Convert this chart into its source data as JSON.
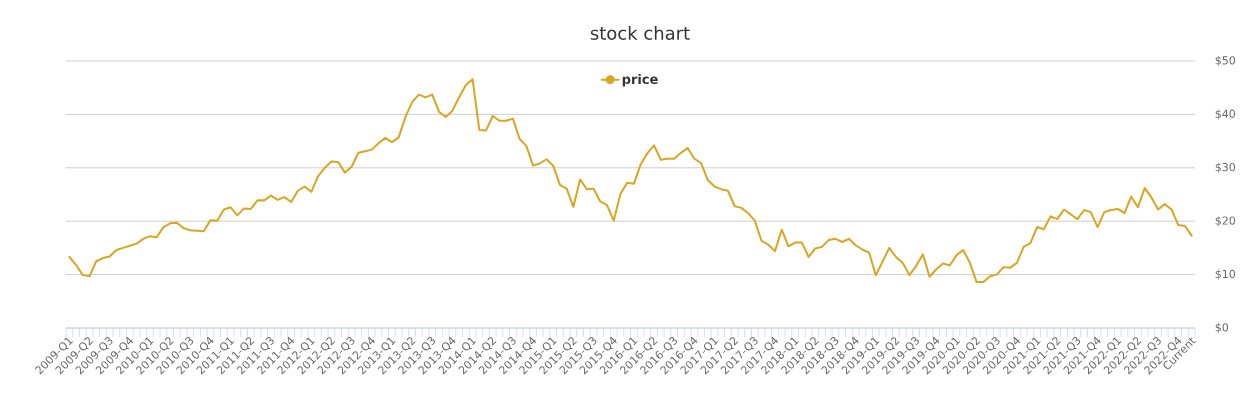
{
  "chart_data": {
    "type": "line",
    "title": "stock chart",
    "categories": [
      "2009-Q1",
      null,
      null,
      "2009-Q2",
      null,
      null,
      "2009-Q3",
      null,
      null,
      "2009-Q4",
      null,
      null,
      "2010-Q1",
      null,
      null,
      "2010-Q2",
      null,
      null,
      "2010-Q3",
      null,
      null,
      "2010-Q4",
      null,
      null,
      "2011-Q1",
      null,
      null,
      "2011-Q2",
      null,
      null,
      "2011-Q3",
      null,
      null,
      "2011-Q4",
      null,
      null,
      "2012-Q1",
      null,
      null,
      "2012-Q2",
      null,
      null,
      "2012-Q3",
      null,
      null,
      "2012-Q4",
      null,
      null,
      "2013-Q1",
      null,
      null,
      "2013-Q2",
      null,
      null,
      "2013-Q3",
      null,
      null,
      "2013-Q4",
      null,
      null,
      "2014-Q1",
      null,
      null,
      "2014-Q2",
      null,
      null,
      "2014-Q3",
      null,
      null,
      "2014-Q4",
      null,
      null,
      "2015-Q1",
      null,
      null,
      "2015-Q2",
      null,
      null,
      "2015-Q3",
      null,
      null,
      "2015-Q4",
      null,
      null,
      "2016-Q1",
      null,
      null,
      "2016-Q2",
      null,
      null,
      "2016-Q3",
      null,
      null,
      "2016-Q4",
      null,
      null,
      "2017-Q1",
      null,
      null,
      "2017-Q2",
      null,
      null,
      "2017-Q3",
      null,
      null,
      "2017-Q4",
      null,
      null,
      "2018-Q1",
      null,
      null,
      "2018-Q2",
      null,
      null,
      "2018-Q3",
      null,
      null,
      "2018-Q4",
      null,
      null,
      "2019-Q1",
      null,
      null,
      "2019-Q2",
      null,
      null,
      "2019-Q3",
      null,
      null,
      "2019-Q4",
      null,
      null,
      "2020-Q1",
      null,
      null,
      "2020-Q2",
      null,
      null,
      "2020-Q3",
      null,
      null,
      "2020-Q4",
      null,
      null,
      "2021-Q1",
      null,
      null,
      "2021-Q2",
      null,
      null,
      "2021-Q3",
      null,
      null,
      "2021-Q4",
      null,
      null,
      "2022-Q1",
      null,
      null,
      "2022-Q2",
      null,
      null,
      "2022-Q3",
      null,
      null,
      "2022-Q4",
      null,
      "Current"
    ],
    "series": [
      {
        "name": "price",
        "color": "#daa520",
        "values": [
          13.3,
          11.8,
          9.9,
          9.7,
          12.5,
          13.1,
          13.4,
          14.6,
          15.0,
          15.4,
          15.8,
          16.7,
          17.2,
          17.0,
          18.9,
          19.6,
          19.7,
          18.7,
          18.3,
          18.2,
          18.1,
          20.2,
          20.1,
          22.2,
          22.6,
          21.1,
          22.4,
          22.3,
          23.9,
          23.9,
          24.8,
          24.0,
          24.5,
          23.6,
          25.7,
          26.5,
          25.5,
          28.4,
          30.0,
          31.2,
          31.1,
          29.1,
          30.2,
          32.8,
          33.1,
          33.4,
          34.6,
          35.6,
          34.8,
          35.7,
          39.5,
          42.3,
          43.7,
          43.2,
          43.7,
          40.5,
          39.5,
          40.7,
          43.2,
          45.5,
          46.6,
          37.1,
          37.0,
          39.7,
          38.8,
          38.8,
          39.2,
          35.4,
          34.1,
          30.4,
          30.8,
          31.6,
          30.4,
          26.8,
          26.1,
          22.7,
          27.8,
          26.0,
          26.1,
          23.7,
          23.0,
          20.1,
          25.1,
          27.2,
          27.0,
          30.6,
          32.7,
          34.2,
          31.5,
          31.7,
          31.7,
          32.8,
          33.7,
          31.7,
          30.9,
          27.7,
          26.5,
          26.0,
          25.7,
          22.8,
          22.5,
          21.5,
          20.1,
          16.3,
          15.6,
          14.4,
          18.4,
          15.3,
          16.0,
          16.0,
          13.3,
          14.9,
          15.2,
          16.5,
          16.7,
          16.1,
          16.7,
          15.5,
          14.7,
          14.1,
          9.9,
          12.4,
          15.0,
          13.3,
          12.2,
          9.9,
          11.6,
          13.8,
          9.6,
          11.0,
          12.1,
          11.7,
          13.6,
          14.6,
          12.2,
          8.6,
          8.6,
          9.7,
          10.0,
          11.4,
          11.3,
          12.2,
          15.2,
          15.9,
          18.9,
          18.5,
          20.9,
          20.4,
          22.2,
          21.3,
          20.4,
          22.1,
          21.7,
          18.9,
          21.7,
          22.1,
          22.3,
          21.5,
          24.6,
          22.6,
          26.2,
          24.5,
          22.2,
          23.2,
          22.2,
          19.3,
          19.1,
          17.3
        ]
      }
    ],
    "ylim": [
      0,
      50
    ],
    "yticks": [
      {
        "value": 0,
        "label": "$0"
      },
      {
        "value": 10,
        "label": "$10"
      },
      {
        "value": 20,
        "label": "$20"
      },
      {
        "value": 30,
        "label": "$30"
      },
      {
        "value": 40,
        "label": "$40"
      },
      {
        "value": 50,
        "label": "$50"
      }
    ],
    "grid": "y",
    "legend": "top"
  }
}
